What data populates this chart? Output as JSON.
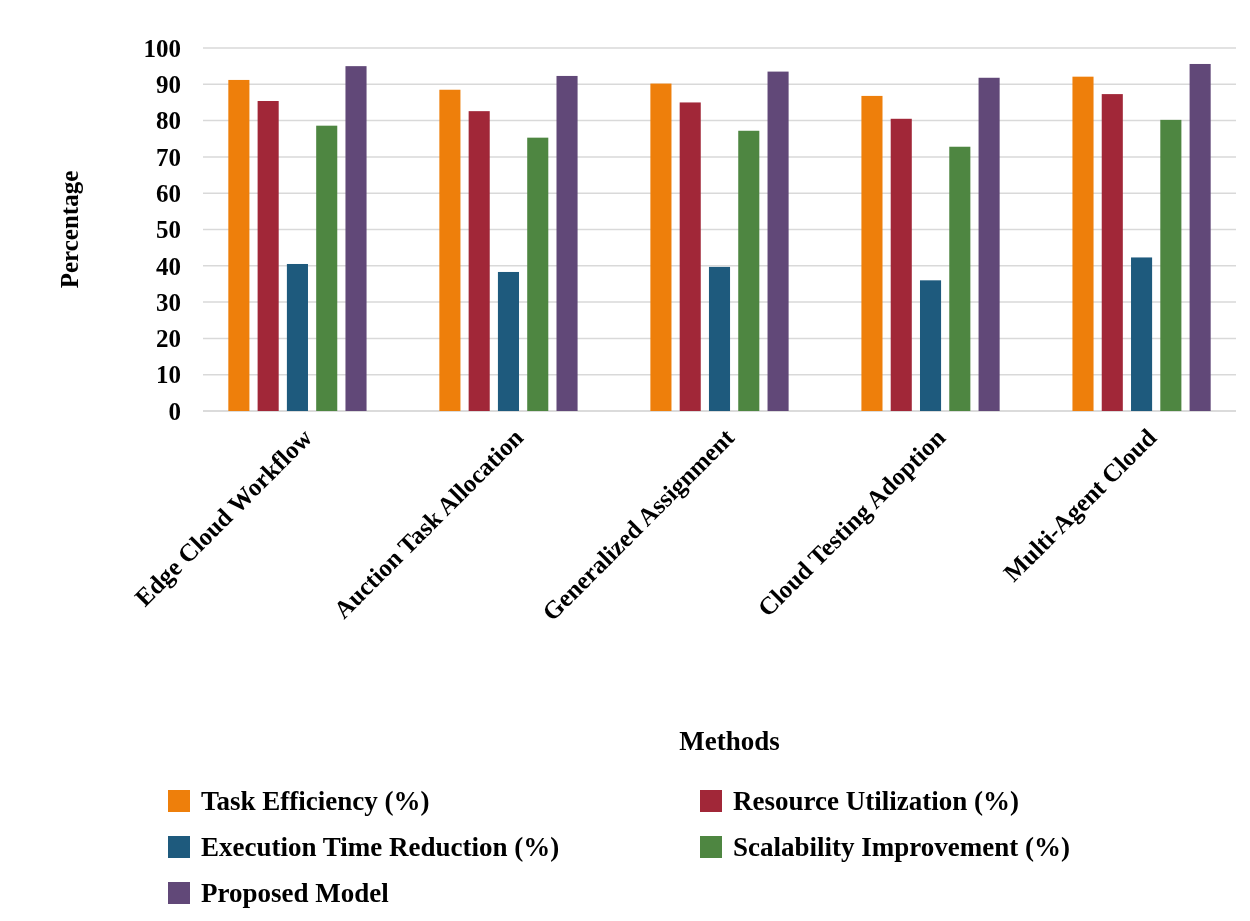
{
  "chart_data": {
    "type": "bar",
    "xlabel": "Methods",
    "ylabel": "Percentage",
    "categories": [
      "Edge Cloud Workflow",
      "Auction Task Allocation",
      "Generalized Assignment",
      "Cloud Testing Adoption",
      "Multi-Agent Cloud"
    ],
    "series": [
      {
        "name": "Task Efficiency (%)",
        "color": "#ee7f0b",
        "values": [
          91.2,
          88.5,
          90.2,
          86.8,
          92.1
        ]
      },
      {
        "name": "Resource Utilization (%)",
        "color": "#a12738",
        "values": [
          85.4,
          82.6,
          85,
          80.5,
          87.3
        ]
      },
      {
        "name": "Execution Time Reduction (%)",
        "color": "#1e5a7d",
        "values": [
          40.5,
          38.3,
          39.7,
          36,
          42.3
        ]
      },
      {
        "name": "Scalability Improvement (%)",
        "color": "#4e8641",
        "values": [
          78.6,
          75.3,
          77.2,
          72.8,
          80.2
        ]
      },
      {
        "name": "Proposed Model",
        "color": "#614878",
        "values": [
          95,
          92.3,
          93.5,
          91.8,
          95.6
        ]
      }
    ],
    "ylim": [
      0,
      100
    ],
    "yticks": [
      0,
      10,
      20,
      30,
      40,
      50,
      60,
      70,
      80,
      90,
      100
    ],
    "grid": "y",
    "legend": "bottom"
  }
}
